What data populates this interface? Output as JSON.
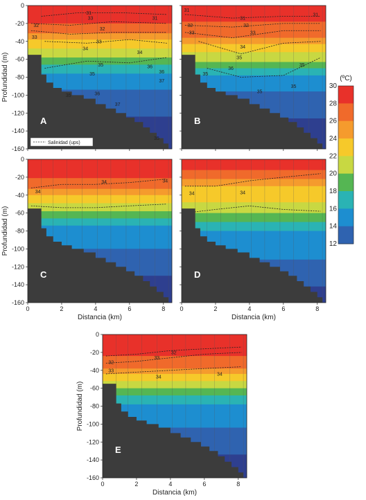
{
  "figure": {
    "xlabel": "Distancia (km)",
    "ylabel": "Profundidad (m)",
    "colorbar_title": "(ºC)",
    "legend_label": "Salinidad (ups)"
  },
  "chart_data": [
    {
      "type": "heatmap",
      "panel": "A",
      "x_range": [
        0,
        8.5
      ],
      "y_range": [
        -160,
        0
      ],
      "x_ticks": [
        0,
        2,
        4,
        6,
        8
      ],
      "y_ticks": [
        0,
        -20,
        -40,
        -60,
        -80,
        -100,
        -120,
        -140,
        -160
      ],
      "xlabel": "",
      "ylabel": "Profundidad (m)",
      "isotherm_depths": {
        "28": -20,
        "26": -31,
        "24": -38,
        "22": -48,
        "20": -58,
        "18": -66,
        "16": -76,
        "14": -94
      },
      "salinity_contours": [
        {
          "label": "31",
          "x": [
            0.8,
            3,
            5.5,
            8.2
          ],
          "depth": [
            -12,
            -8,
            -8,
            -10
          ]
        },
        {
          "label": "32",
          "x": [
            0.2,
            2.5,
            5,
            8.2
          ],
          "depth": [
            -20,
            -22,
            -18,
            -20
          ]
        },
        {
          "label": "33",
          "x": [
            0.2,
            2.5,
            5,
            8.2
          ],
          "depth": [
            -28,
            -32,
            -30,
            -30
          ]
        },
        {
          "label": "34",
          "x": [
            1,
            3.5,
            6,
            8.2
          ],
          "depth": [
            -40,
            -42,
            -38,
            -42
          ]
        },
        {
          "label": "35",
          "x": [
            1,
            3.5,
            6,
            8.2
          ],
          "depth": [
            -70,
            -62,
            -64,
            -58
          ]
        }
      ],
      "contour_labels": [
        {
          "text": "31",
          "x": 3.6,
          "depth": -8
        },
        {
          "text": "33",
          "x": 3.7,
          "depth": -14
        },
        {
          "text": "31",
          "x": 7.5,
          "depth": -14
        },
        {
          "text": "32",
          "x": 0.5,
          "depth": -22
        },
        {
          "text": "32",
          "x": 4.4,
          "depth": -26
        },
        {
          "text": "33",
          "x": 0.4,
          "depth": -35
        },
        {
          "text": "33",
          "x": 4.2,
          "depth": -40
        },
        {
          "text": "34",
          "x": 3.4,
          "depth": -48
        },
        {
          "text": "34",
          "x": 6.6,
          "depth": -52
        },
        {
          "text": "35",
          "x": 4.3,
          "depth": -66
        },
        {
          "text": "35",
          "x": 3.8,
          "depth": -76
        },
        {
          "text": "35",
          "x": 2.4,
          "depth": -100
        },
        {
          "text": "36",
          "x": 7.2,
          "depth": -68
        },
        {
          "text": "36",
          "x": 7.9,
          "depth": -74
        },
        {
          "text": "37",
          "x": 7.9,
          "depth": -84
        },
        {
          "text": "37",
          "x": 5.3,
          "depth": -110
        },
        {
          "text": "36",
          "x": 4.1,
          "depth": -98
        },
        {
          "text": "35",
          "x": 7.6,
          "depth": -148
        }
      ],
      "station_x": [
        0.8,
        1.5,
        2.3,
        3.2,
        4.1,
        4.9,
        5.8,
        6.6,
        7.5,
        8.3
      ]
    },
    {
      "type": "heatmap",
      "panel": "B",
      "x_range": [
        0,
        8.5
      ],
      "y_range": [
        -160,
        0
      ],
      "x_ticks": [
        0,
        2,
        4,
        6,
        8
      ],
      "y_ticks": [
        0,
        -20,
        -40,
        -60,
        -80,
        -100,
        -120,
        -140,
        -160
      ],
      "xlabel": "",
      "ylabel": "",
      "isotherm_depths": {
        "28": -18,
        "26": -36,
        "24": -43,
        "22": -52,
        "20": -63,
        "18": -70,
        "16": -78,
        "14": -96
      },
      "salinity_contours": [
        {
          "label": "31",
          "x": [
            0.2,
            3,
            6,
            8.2
          ],
          "depth": [
            -10,
            -14,
            -12,
            -12
          ]
        },
        {
          "label": "32",
          "x": [
            0.2,
            3,
            6,
            8.2
          ],
          "depth": [
            -22,
            -24,
            -20,
            -20
          ]
        },
        {
          "label": "33",
          "x": [
            0.2,
            3,
            6,
            8.2
          ],
          "depth": [
            -30,
            -36,
            -28,
            -28
          ]
        },
        {
          "label": "34",
          "x": [
            1,
            3.5,
            6,
            8.2
          ],
          "depth": [
            -40,
            -54,
            -42,
            -40
          ]
        },
        {
          "label": "35",
          "x": [
            1.5,
            3.5,
            6,
            8.2
          ],
          "depth": [
            -70,
            -80,
            -78,
            -58
          ]
        }
      ],
      "contour_labels": [
        {
          "text": "31",
          "x": 0.3,
          "depth": -5
        },
        {
          "text": "31",
          "x": 3.6,
          "depth": -14
        },
        {
          "text": "31",
          "x": 7.9,
          "depth": -10
        },
        {
          "text": "32",
          "x": 3.8,
          "depth": -22
        },
        {
          "text": "32",
          "x": 0.5,
          "depth": -22
        },
        {
          "text": "33",
          "x": 0.6,
          "depth": -30
        },
        {
          "text": "33",
          "x": 4.2,
          "depth": -30
        },
        {
          "text": "34",
          "x": 3.6,
          "depth": -46
        },
        {
          "text": "35",
          "x": 3.4,
          "depth": -58
        },
        {
          "text": "35",
          "x": 1.4,
          "depth": -76
        },
        {
          "text": "35",
          "x": 7.1,
          "depth": -66
        },
        {
          "text": "35",
          "x": 6.6,
          "depth": -90
        },
        {
          "text": "36",
          "x": 2.9,
          "depth": -70
        },
        {
          "text": "35",
          "x": 4.6,
          "depth": -96
        }
      ],
      "station_x": [
        0.8,
        1.5,
        2.3,
        3.2,
        4.1,
        4.9,
        5.8,
        6.6,
        7.5,
        8.3
      ]
    },
    {
      "type": "heatmap",
      "panel": "C",
      "x_range": [
        0,
        8.5
      ],
      "y_range": [
        -160,
        0
      ],
      "x_ticks": [
        0,
        2,
        4,
        6,
        8
      ],
      "y_ticks": [
        0,
        -20,
        -40,
        -60,
        -80,
        -100,
        -120,
        -140,
        -160
      ],
      "xlabel": "Distancia (km)",
      "ylabel": "Profundidad (m)",
      "isotherm_depths": {
        "28": -21,
        "26": -33,
        "24": -40,
        "22": -49,
        "20": -58,
        "18": -66,
        "16": -74,
        "14": -100
      },
      "salinity_contours": [
        {
          "label": "34",
          "x": [
            0.2,
            2,
            4,
            6,
            8.2
          ],
          "depth": [
            -32,
            -28,
            -28,
            -26,
            -22
          ]
        },
        {
          "label": "34",
          "x": [
            0.2,
            2,
            4,
            6,
            8.2
          ],
          "depth": [
            -52,
            -54,
            -54,
            -52,
            -50
          ]
        }
      ],
      "contour_labels": [
        {
          "text": "34",
          "x": 4.5,
          "depth": -25
        },
        {
          "text": "34",
          "x": 8.1,
          "depth": -24
        },
        {
          "text": "34",
          "x": 0.6,
          "depth": -36
        }
      ],
      "station_x": [
        0.8,
        1.5,
        2.3,
        3.2,
        4.1,
        4.9,
        5.8,
        6.6,
        7.5,
        8.3
      ]
    },
    {
      "type": "heatmap",
      "panel": "D",
      "x_range": [
        0,
        8.5
      ],
      "y_range": [
        -160,
        0
      ],
      "x_ticks": [
        0,
        2,
        4,
        6,
        8
      ],
      "y_ticks": [
        0,
        -20,
        -40,
        -60,
        -80,
        -100,
        -120,
        -140,
        -160
      ],
      "xlabel": "Distancia (km)",
      "ylabel": "",
      "isotherm_depths": {
        "28": -12,
        "26": -22,
        "24": -30,
        "22": -48,
        "20": -60,
        "18": -70,
        "16": -80,
        "14": -112
      },
      "salinity_contours": [
        {
          "label": "34",
          "x": [
            0.2,
            2,
            4,
            6,
            8.2
          ],
          "depth": [
            -30,
            -30,
            -24,
            -20,
            -16
          ]
        },
        {
          "label": "34",
          "x": [
            0.2,
            2,
            4,
            6,
            8.2
          ],
          "depth": [
            -60,
            -56,
            -52,
            -56,
            -58
          ]
        }
      ],
      "contour_labels": [
        {
          "text": "34",
          "x": 3.6,
          "depth": -37
        },
        {
          "text": "34",
          "x": 0.6,
          "depth": -38
        }
      ],
      "station_x": [
        0.8,
        1.5,
        2.3,
        3.2,
        4.1,
        4.9,
        5.8,
        6.6,
        7.5,
        8.3
      ]
    },
    {
      "type": "heatmap",
      "panel": "E",
      "x_range": [
        0,
        8.5
      ],
      "y_range": [
        -160,
        0
      ],
      "x_ticks": [
        0,
        2,
        4,
        6,
        8
      ],
      "y_ticks": [
        0,
        -20,
        -40,
        -60,
        -80,
        -100,
        -120,
        -140,
        -160
      ],
      "xlabel": "Distancia (km)",
      "ylabel": "Profundidad (m)",
      "isotherm_depths": {
        "28": -24,
        "26": -38,
        "24": -44,
        "22": -52,
        "20": -60,
        "18": -68,
        "16": -78,
        "14": -104
      },
      "salinity_contours": [
        {
          "label": "32",
          "x": [
            0.2,
            2,
            4,
            6,
            8.2
          ],
          "depth": [
            -24,
            -22,
            -18,
            -16,
            -14
          ]
        },
        {
          "label": "33",
          "x": [
            0.2,
            2,
            4,
            6,
            8.2
          ],
          "depth": [
            -32,
            -30,
            -26,
            -22,
            -20
          ]
        },
        {
          "label": "34",
          "x": [
            0.2,
            2,
            4,
            6,
            8.2
          ],
          "depth": [
            -44,
            -42,
            -40,
            -38,
            -36
          ]
        }
      ],
      "contour_labels": [
        {
          "text": "32",
          "x": 4.2,
          "depth": -20
        },
        {
          "text": "33",
          "x": 3.2,
          "depth": -26
        },
        {
          "text": "32",
          "x": 0.5,
          "depth": -31
        },
        {
          "text": "33",
          "x": 0.5,
          "depth": -40
        },
        {
          "text": "34",
          "x": 3.3,
          "depth": -47
        },
        {
          "text": "34",
          "x": 6.9,
          "depth": -44
        }
      ],
      "station_x": [
        0.8,
        1.5,
        2.3,
        3.2,
        4.1,
        4.9,
        5.8,
        6.6,
        7.5,
        8.3
      ]
    },
    {
      "type": "colorbar",
      "ticks": [
        30,
        28,
        26,
        24,
        22,
        20,
        18,
        16,
        14,
        12
      ],
      "colors": {
        "30": "#e8312a",
        "28": "#f06a2b",
        "26": "#f59b2d",
        "24": "#f6c92a",
        "22": "#c8d842",
        "20": "#55b653",
        "18": "#2ab3b4",
        "16": "#1d8ed0",
        "14": "#2f63b0",
        "12": "#2e3f8f"
      }
    }
  ],
  "bathymetry": {
    "color": "#3c3c3c",
    "x": [
      0,
      0.8,
      0.8,
      1.1,
      1.1,
      1.5,
      1.5,
      2.0,
      2.0,
      2.6,
      2.6,
      3.3,
      3.3,
      4.0,
      4.0,
      4.6,
      4.6,
      5.2,
      5.2,
      5.8,
      5.8,
      6.3,
      6.3,
      6.8,
      6.8,
      7.2,
      7.2,
      7.6,
      7.6,
      8.0,
      8.0,
      8.3,
      8.3
    ],
    "depth": [
      -55,
      -55,
      -77,
      -77,
      -86,
      -86,
      -92,
      -92,
      -96,
      -96,
      -100,
      -100,
      -104,
      -104,
      -110,
      -110,
      -115,
      -115,
      -120,
      -120,
      -125,
      -125,
      -130,
      -130,
      -136,
      -136,
      -142,
      -142,
      -148,
      -148,
      -154,
      -154,
      -160
    ]
  }
}
